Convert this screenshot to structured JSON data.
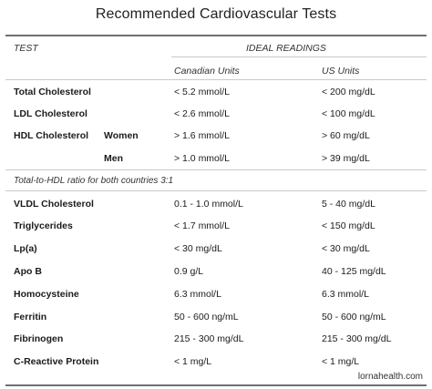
{
  "title": "Recommended Cardiovascular Tests",
  "headers": {
    "test": "TEST",
    "ideal": "IDEAL READINGS",
    "canadian": "Canadian Units",
    "us": "US Units"
  },
  "rows_top": [
    {
      "test": "Total Cholesterol",
      "sub": "",
      "ca": "< 5.2 mmol/L",
      "us": "< 200 mg/dL"
    },
    {
      "test": "LDL Cholesterol",
      "sub": "",
      "ca": "< 2.6 mmol/L",
      "us": "< 100 mg/dL"
    },
    {
      "test": "HDL Cholesterol",
      "sub": "Women",
      "ca": "> 1.6 mmol/L",
      "us": "> 60 mg/dL"
    },
    {
      "test": "",
      "sub": "Men",
      "ca": "> 1.0 mmol/L",
      "us": "> 39 mg/dL"
    }
  ],
  "note": "Total-to-HDL ratio for both countries 3:1",
  "rows_bottom": [
    {
      "test": "VLDL Cholesterol",
      "ca": "0.1 - 1.0 mmol/L",
      "us": "5 - 40 mg/dL"
    },
    {
      "test": "Triglycerides",
      "ca": "< 1.7 mmol/L",
      "us": "< 150 mg/dL"
    },
    {
      "test": "Lp(a)",
      "ca": "< 30 mg/dL",
      "us": "< 30 mg/dL"
    },
    {
      "test": "Apo B",
      "ca": "0.9 g/L",
      "us": "40 - 125 mg/dL"
    },
    {
      "test": "Homocysteine",
      "ca": "6.3 mmol/L",
      "us": "6.3 mmol/L"
    },
    {
      "test": "Ferritin",
      "ca": "50 - 600 ng/mL",
      "us": "50 - 600 ng/mL"
    },
    {
      "test": "Fibrinogen",
      "ca": "215 - 300 mg/dL",
      "us": "215 - 300 mg/dL"
    },
    {
      "test": "C-Reactive Protein",
      "ca": "< 1 mg/L",
      "us": "< 1 mg/L"
    }
  ],
  "watermark": "lornahealth.com"
}
